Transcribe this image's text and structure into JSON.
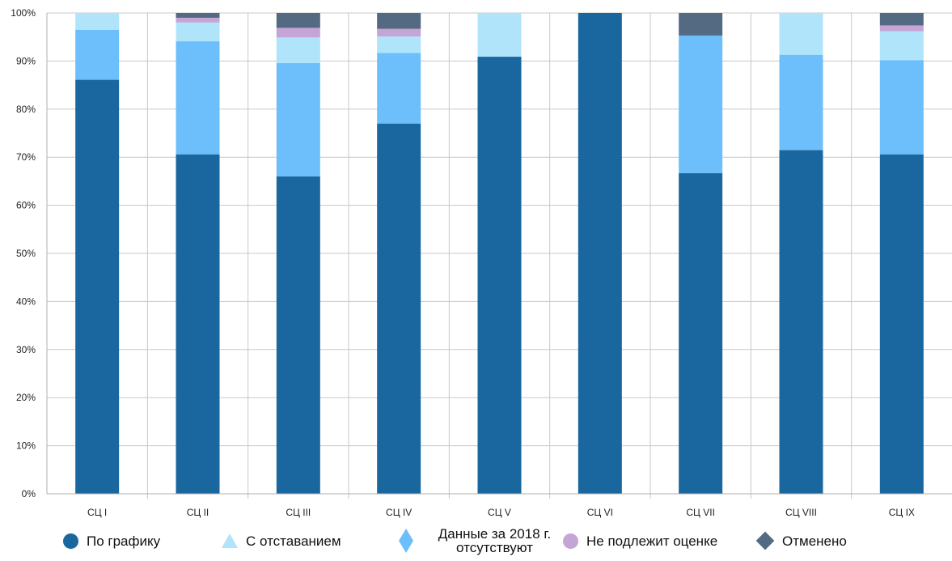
{
  "chart_data": {
    "type": "bar",
    "stacked": "percent",
    "categories": [
      "СЦ I",
      "СЦ II",
      "СЦ III",
      "СЦ IV",
      "СЦ V",
      "СЦ VI",
      "СЦ VII",
      "СЦ VIII",
      "СЦ IX"
    ],
    "series": [
      {
        "name": "По графику",
        "color": "#1a67a0",
        "marker": "circle",
        "values": [
          86.1,
          70.6,
          66.0,
          77.0,
          90.9,
          100,
          66.7,
          71.5,
          70.6
        ]
      },
      {
        "name": "Данные за 2018 г. отсутствуют",
        "color": "#6cbffb",
        "marker": "diamond",
        "values": [
          10.4,
          23.5,
          23.6,
          14.7,
          0,
          0,
          28.6,
          19.8,
          19.6
        ]
      },
      {
        "name": "С отставанием",
        "color": "#b0e4fa",
        "marker": "triangle",
        "values": [
          3.5,
          3.9,
          5.3,
          3.4,
          9.1,
          0,
          0,
          8.7,
          6.0
        ]
      },
      {
        "name": "Не подлежит оценке",
        "color": "#c5a5d6",
        "marker": "circle",
        "values": [
          0,
          1.0,
          2.0,
          1.6,
          0,
          0,
          0,
          0,
          1.2
        ]
      },
      {
        "name": "Отменено",
        "color": "#546982",
        "marker": "diamond",
        "values": [
          0,
          1.0,
          3.1,
          3.3,
          0,
          0,
          4.7,
          0,
          2.6
        ]
      }
    ],
    "yticks": [
      "0%",
      "10%",
      "20%",
      "30%",
      "40%",
      "50%",
      "60%",
      "70%",
      "80%",
      "90%",
      "100%"
    ],
    "ylim": [
      0,
      100
    ],
    "grid": true,
    "legend_position": "bottom",
    "legend_order": [
      "По графику",
      "С отставанием",
      "Данные за 2018 г. отсутствуют",
      "Не подлежит оценке",
      "Отменено"
    ]
  },
  "legend": {
    "items": [
      {
        "label": "По графику",
        "color": "#1a67a0",
        "marker": "circle"
      },
      {
        "label": "С отставанием",
        "color": "#b0e4fa",
        "marker": "triangle"
      },
      {
        "label": "Данные за 2018 г. отсутствуют",
        "color": "#6cbffb",
        "marker": "diamond"
      },
      {
        "label": "Не подлежит оценке",
        "color": "#c5a5d6",
        "marker": "circle"
      },
      {
        "label": "Отменено",
        "color": "#546982",
        "marker": "diamond"
      }
    ]
  }
}
